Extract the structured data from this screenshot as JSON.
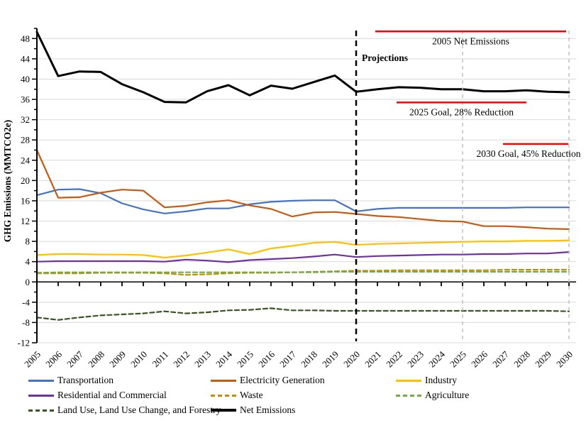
{
  "chart_data": {
    "type": "line",
    "title": "",
    "xlabel": "",
    "ylabel": "GHG Emissions (MMTCO2e)",
    "ylim": [
      -12,
      50
    ],
    "ytick_step": 4,
    "ytick_minor_step": 2,
    "grid": "horizontal",
    "grid_color": "#D9D9D9",
    "axis_color": "#000000",
    "legend_position": "bottom",
    "x": [
      2005,
      2006,
      2007,
      2008,
      2009,
      2010,
      2011,
      2012,
      2013,
      2014,
      2015,
      2016,
      2017,
      2018,
      2019,
      2020,
      2021,
      2022,
      2023,
      2024,
      2025,
      2026,
      2027,
      2028,
      2029,
      2030
    ],
    "series": [
      {
        "name": "Transportation",
        "color": "#4472C4",
        "style": "solid",
        "width": 2.2,
        "values": [
          17.1,
          18.2,
          18.3,
          17.5,
          15.5,
          14.3,
          13.5,
          13.9,
          14.5,
          14.5,
          15.3,
          15.8,
          16.0,
          16.1,
          16.1,
          13.9,
          14.4,
          14.6,
          14.6,
          14.6,
          14.6,
          14.6,
          14.6,
          14.7,
          14.7,
          14.7
        ]
      },
      {
        "name": "Electricity Generation",
        "color": "#C55A11",
        "style": "solid",
        "width": 2.2,
        "values": [
          26.0,
          16.6,
          16.7,
          17.6,
          18.2,
          18.0,
          14.7,
          15.0,
          15.7,
          16.1,
          15.1,
          14.4,
          12.9,
          13.7,
          13.8,
          13.4,
          13.0,
          12.8,
          12.4,
          12.0,
          11.9,
          11.0,
          11.0,
          10.8,
          10.5,
          10.4
        ]
      },
      {
        "name": "Industry",
        "color": "#FFC000",
        "style": "solid",
        "width": 2.2,
        "values": [
          5.3,
          5.5,
          5.5,
          5.4,
          5.4,
          5.3,
          4.8,
          5.2,
          5.8,
          6.4,
          5.5,
          6.6,
          7.1,
          7.7,
          7.9,
          7.3,
          7.5,
          7.6,
          7.7,
          7.8,
          7.9,
          8.0,
          8.0,
          8.1,
          8.1,
          8.2
        ]
      },
      {
        "name": "Residential and Commercial",
        "color": "#7030A0",
        "style": "solid",
        "width": 2.2,
        "values": [
          4.0,
          4.1,
          4.1,
          4.1,
          4.1,
          4.1,
          4.0,
          4.4,
          4.2,
          3.9,
          4.3,
          4.5,
          4.7,
          5.0,
          5.4,
          4.9,
          5.1,
          5.2,
          5.3,
          5.4,
          5.4,
          5.5,
          5.5,
          5.6,
          5.6,
          5.9
        ]
      },
      {
        "name": "Waste",
        "color": "#BF8F00",
        "style": "dashed",
        "width": 2.2,
        "values": [
          1.7,
          1.7,
          1.7,
          1.8,
          1.8,
          1.8,
          1.7,
          1.4,
          1.5,
          1.7,
          1.8,
          1.8,
          1.9,
          2.0,
          2.1,
          2.2,
          2.2,
          2.3,
          2.3,
          2.3,
          2.3,
          2.3,
          2.4,
          2.4,
          2.4,
          2.4
        ]
      },
      {
        "name": "Agriculture",
        "color": "#70AD47",
        "style": "dashed",
        "width": 2.2,
        "values": [
          1.8,
          1.9,
          1.9,
          1.9,
          1.9,
          1.9,
          1.9,
          1.9,
          1.9,
          1.9,
          1.9,
          1.9,
          1.9,
          1.9,
          2.0,
          2.0,
          2.0,
          2.0,
          2.0,
          2.0,
          2.0,
          2.0,
          2.0,
          2.0,
          2.0,
          2.0
        ]
      },
      {
        "name": "Land Use, Land Use Change, and Forestry",
        "color": "#375623",
        "style": "dashed",
        "width": 2.2,
        "values": [
          -7.0,
          -7.5,
          -7.0,
          -6.6,
          -6.4,
          -6.2,
          -5.8,
          -6.2,
          -6.0,
          -5.6,
          -5.5,
          -5.2,
          -5.6,
          -5.6,
          -5.7,
          -5.7,
          -5.7,
          -5.7,
          -5.7,
          -5.7,
          -5.7,
          -5.7,
          -5.7,
          -5.7,
          -5.7,
          -5.8
        ]
      },
      {
        "name": "Net Emissions",
        "color": "#000000",
        "style": "solid",
        "width": 3,
        "values": [
          49.3,
          40.6,
          41.5,
          41.4,
          39.0,
          37.4,
          35.5,
          35.4,
          37.6,
          38.8,
          36.8,
          38.7,
          38.1,
          39.4,
          40.7,
          37.5,
          38.0,
          38.4,
          38.3,
          38.0,
          38.0,
          37.6,
          37.6,
          37.8,
          37.5,
          37.4
        ]
      }
    ],
    "reference_lines": [
      {
        "label": "2005 Net Emissions",
        "value": 49.4,
        "from_year": 2020.9,
        "to_year": 2029.87,
        "color": "#FF0000"
      },
      {
        "label": "2025 Goal, 28% Reduction",
        "value": 35.4,
        "from_year": 2021.9,
        "to_year": 2028.0,
        "color": "#FF0000"
      },
      {
        "label": "2030 Goal, 45% Reduction",
        "value": 27.2,
        "from_year": 2026.9,
        "to_year": 2029.97,
        "color": "#FF0000"
      }
    ],
    "vertical_lines": [
      {
        "year": 2020,
        "color": "#000000",
        "width": 2.5,
        "dash": "8 6",
        "label": "Projections"
      },
      {
        "year": 2025,
        "color": "#BFBFBF",
        "width": 1.5,
        "dash": "5 5",
        "label": ""
      },
      {
        "year": 2030,
        "color": "#BFBFBF",
        "width": 1.5,
        "dash": "5 5",
        "label": ""
      }
    ]
  },
  "legend": {
    "items": [
      {
        "label": "Transportation",
        "series": 0
      },
      {
        "label": "Electricity Generation",
        "series": 1
      },
      {
        "label": "Industry",
        "series": 2
      },
      {
        "label": "Residential and Commercial",
        "series": 3
      },
      {
        "label": "Waste",
        "series": 4
      },
      {
        "label": "Agriculture",
        "series": 5
      },
      {
        "label": "Land Use, Land Use Change, and Forestry",
        "series": 6
      },
      {
        "label": "Net Emissions",
        "series": 7
      }
    ]
  }
}
